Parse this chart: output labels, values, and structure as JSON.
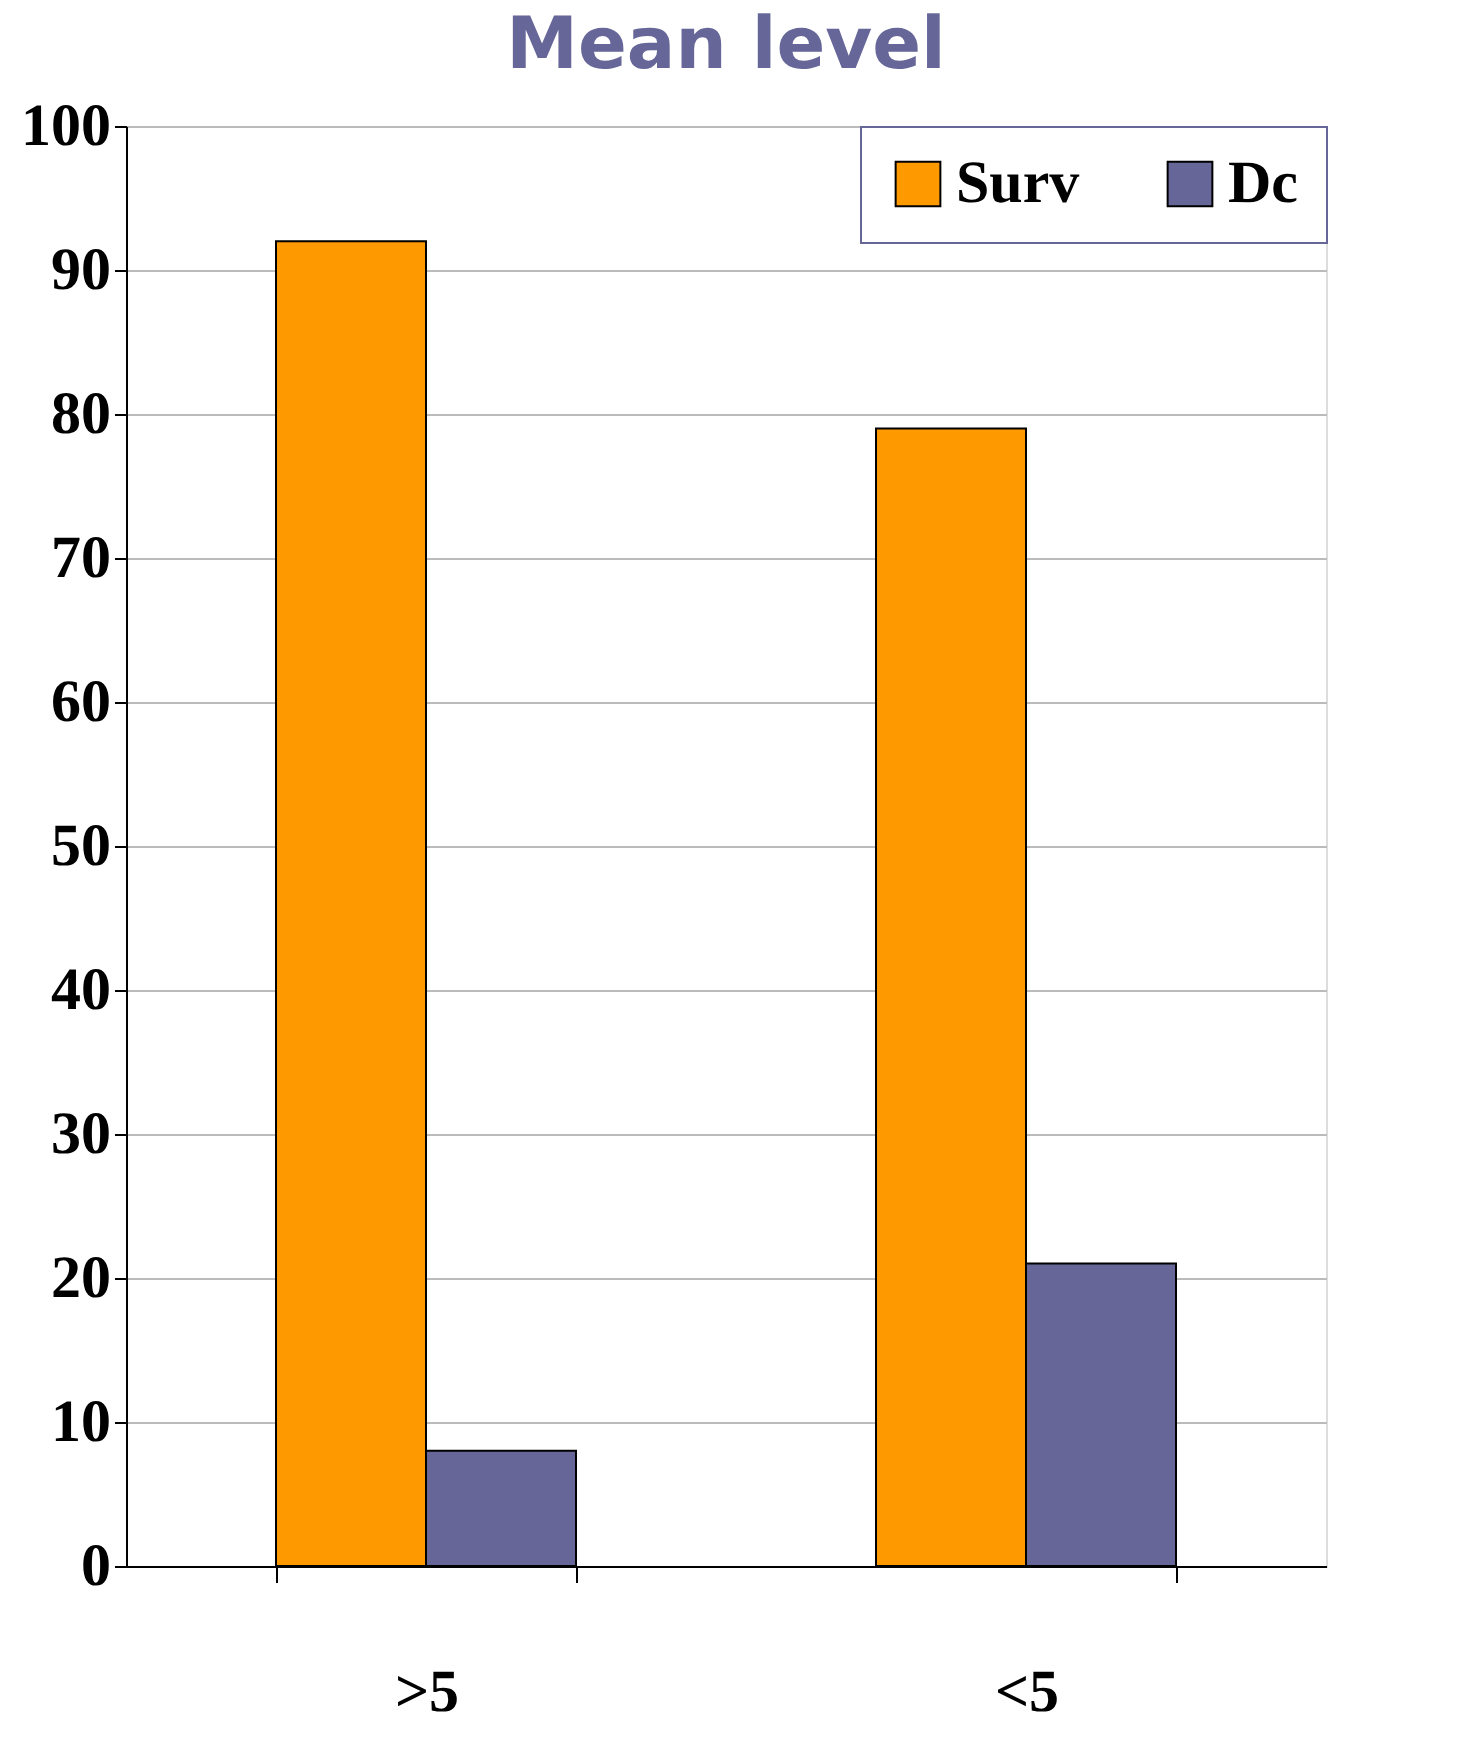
{
  "chart_data": {
    "type": "bar",
    "title": "Mean level",
    "categories": [
      ">5",
      "<5"
    ],
    "series": [
      {
        "name": "Surv",
        "color": "#ff9900",
        "values": [
          92,
          79
        ]
      },
      {
        "name": "Dc",
        "color": "#666699",
        "values": [
          8,
          21
        ]
      }
    ],
    "ylim": [
      0,
      100
    ],
    "yticks": [
      0,
      10,
      20,
      30,
      40,
      50,
      60,
      70,
      80,
      90,
      100
    ],
    "grid": "y",
    "legend": "top right"
  }
}
